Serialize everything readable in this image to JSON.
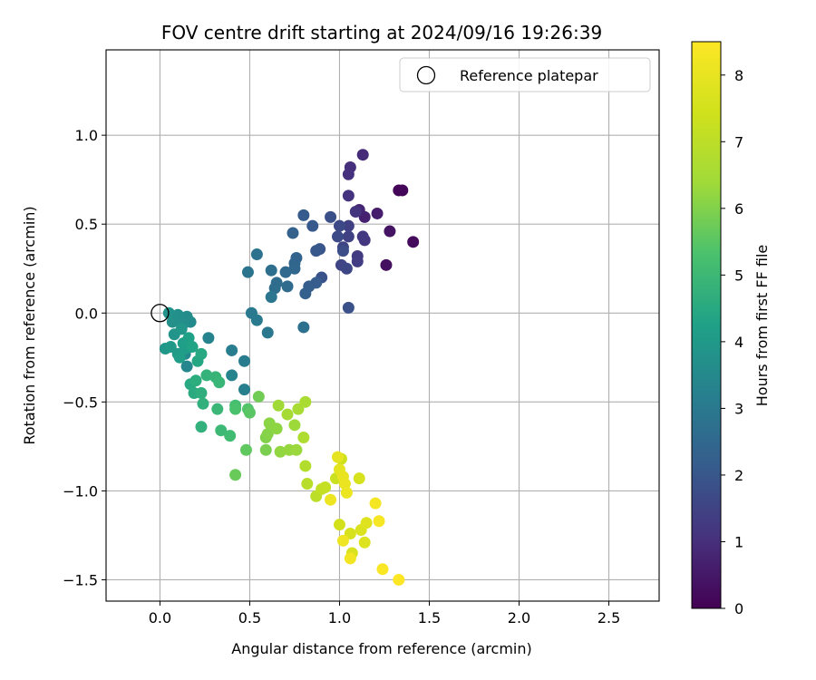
{
  "chart_data": {
    "type": "scatter",
    "title": "FOV centre drift starting at 2024/09/16 19:26:39",
    "xlabel": "Angular distance from reference (arcmin)",
    "ylabel": "Rotation from reference (arcmin)",
    "xlim": [
      -0.3,
      2.78
    ],
    "ylim": [
      -1.62,
      1.48
    ],
    "xticks": [
      0.0,
      0.5,
      1.0,
      1.5,
      2.0,
      2.5
    ],
    "xtick_labels": [
      "0.0",
      "0.5",
      "1.0",
      "1.5",
      "2.0",
      "2.5"
    ],
    "yticks": [
      1.0,
      0.5,
      0.0,
      -0.5,
      -1.0,
      -1.5
    ],
    "ytick_labels": [
      "1.0",
      "0.5",
      "0.0",
      "−0.5",
      "−1.0",
      "−1.5"
    ],
    "grid": true,
    "legend": {
      "position": "top-right",
      "label": "Reference platepar"
    },
    "reference_point": {
      "x": 0.0,
      "y": 0.0
    },
    "colorbar": {
      "label": "Hours from first FF file",
      "colormap": "viridis",
      "range": [
        0,
        8.5
      ],
      "ticks": [
        0,
        1,
        2,
        3,
        4,
        5,
        6,
        7,
        8
      ],
      "tick_labels": [
        "0",
        "1",
        "2",
        "3",
        "4",
        "5",
        "6",
        "7",
        "8"
      ]
    },
    "points": [
      {
        "x": 1.33,
        "y": 0.69,
        "h": 0.05
      },
      {
        "x": 1.35,
        "y": 0.69,
        "h": 0.1
      },
      {
        "x": 1.41,
        "y": 0.4,
        "h": 0.2
      },
      {
        "x": 1.26,
        "y": 0.27,
        "h": 0.3
      },
      {
        "x": 1.28,
        "y": 0.46,
        "h": 0.4
      },
      {
        "x": 1.21,
        "y": 0.56,
        "h": 0.6
      },
      {
        "x": 1.14,
        "y": 0.54,
        "h": 0.7
      },
      {
        "x": 1.11,
        "y": 0.58,
        "h": 0.8
      },
      {
        "x": 1.13,
        "y": 0.89,
        "h": 0.9
      },
      {
        "x": 1.06,
        "y": 0.82,
        "h": 1.0
      },
      {
        "x": 1.05,
        "y": 0.78,
        "h": 1.05
      },
      {
        "x": 1.05,
        "y": 0.66,
        "h": 1.1
      },
      {
        "x": 1.09,
        "y": 0.57,
        "h": 1.15
      },
      {
        "x": 1.14,
        "y": 0.41,
        "h": 1.2
      },
      {
        "x": 1.13,
        "y": 0.43,
        "h": 1.25
      },
      {
        "x": 1.1,
        "y": 0.32,
        "h": 1.3
      },
      {
        "x": 1.1,
        "y": 0.29,
        "h": 1.35
      },
      {
        "x": 1.05,
        "y": 0.49,
        "h": 1.4
      },
      {
        "x": 1.05,
        "y": 0.43,
        "h": 1.45
      },
      {
        "x": 1.02,
        "y": 0.37,
        "h": 1.5
      },
      {
        "x": 1.01,
        "y": 0.27,
        "h": 1.55
      },
      {
        "x": 1.04,
        "y": 0.25,
        "h": 1.6
      },
      {
        "x": 1.0,
        "y": 0.49,
        "h": 1.65
      },
      {
        "x": 0.99,
        "y": 0.43,
        "h": 1.7
      },
      {
        "x": 1.02,
        "y": 0.35,
        "h": 1.75
      },
      {
        "x": 0.95,
        "y": 0.54,
        "h": 1.8
      },
      {
        "x": 1.05,
        "y": 0.03,
        "h": 1.85
      },
      {
        "x": 0.9,
        "y": 0.2,
        "h": 1.9
      },
      {
        "x": 0.89,
        "y": 0.36,
        "h": 1.95
      },
      {
        "x": 0.87,
        "y": 0.35,
        "h": 2.0
      },
      {
        "x": 0.85,
        "y": 0.49,
        "h": 2.05
      },
      {
        "x": 0.8,
        "y": 0.55,
        "h": 2.1
      },
      {
        "x": 0.87,
        "y": 0.17,
        "h": 2.15
      },
      {
        "x": 0.83,
        "y": 0.15,
        "h": 2.2
      },
      {
        "x": 0.81,
        "y": 0.11,
        "h": 2.25
      },
      {
        "x": 0.74,
        "y": 0.45,
        "h": 2.3
      },
      {
        "x": 0.76,
        "y": 0.31,
        "h": 2.35
      },
      {
        "x": 0.75,
        "y": 0.28,
        "h": 2.4
      },
      {
        "x": 0.75,
        "y": 0.25,
        "h": 2.45
      },
      {
        "x": 0.7,
        "y": 0.23,
        "h": 2.5
      },
      {
        "x": 0.71,
        "y": 0.15,
        "h": 2.55
      },
      {
        "x": 0.65,
        "y": 0.17,
        "h": 2.6
      },
      {
        "x": 0.64,
        "y": 0.14,
        "h": 2.65
      },
      {
        "x": 0.62,
        "y": 0.24,
        "h": 2.7
      },
      {
        "x": 0.8,
        "y": -0.08,
        "h": 2.75
      },
      {
        "x": 0.54,
        "y": 0.33,
        "h": 2.8
      },
      {
        "x": 0.49,
        "y": 0.23,
        "h": 2.85
      },
      {
        "x": 0.62,
        "y": 0.09,
        "h": 2.9
      },
      {
        "x": 0.6,
        "y": -0.11,
        "h": 2.95
      },
      {
        "x": 0.51,
        "y": 0.0,
        "h": 3.0
      },
      {
        "x": 0.54,
        "y": -0.04,
        "h": 3.05
      },
      {
        "x": 0.47,
        "y": -0.27,
        "h": 3.1
      },
      {
        "x": 0.4,
        "y": -0.21,
        "h": 3.15
      },
      {
        "x": 0.47,
        "y": -0.43,
        "h": 3.2
      },
      {
        "x": 0.27,
        "y": -0.14,
        "h": 3.3
      },
      {
        "x": 0.4,
        "y": -0.35,
        "h": 3.35
      },
      {
        "x": 0.15,
        "y": -0.3,
        "h": 3.4
      },
      {
        "x": 0.14,
        "y": -0.23,
        "h": 3.5
      },
      {
        "x": 0.17,
        "y": -0.05,
        "h": 3.55
      },
      {
        "x": 0.15,
        "y": -0.02,
        "h": 3.6
      },
      {
        "x": 0.13,
        "y": -0.06,
        "h": 3.65
      },
      {
        "x": 0.1,
        "y": -0.01,
        "h": 3.7
      },
      {
        "x": 0.07,
        "y": -0.05,
        "h": 3.75
      },
      {
        "x": 0.05,
        "y": 0.0,
        "h": 3.8
      },
      {
        "x": 0.08,
        "y": -0.12,
        "h": 3.85
      },
      {
        "x": 0.12,
        "y": -0.09,
        "h": 3.9
      },
      {
        "x": 0.03,
        "y": -0.2,
        "h": 3.95
      },
      {
        "x": 0.06,
        "y": -0.19,
        "h": 4.0
      },
      {
        "x": 0.1,
        "y": -0.23,
        "h": 4.05
      },
      {
        "x": 0.14,
        "y": -0.2,
        "h": 4.1
      },
      {
        "x": 0.11,
        "y": -0.25,
        "h": 4.15
      },
      {
        "x": 0.13,
        "y": -0.17,
        "h": 4.2
      },
      {
        "x": 0.16,
        "y": -0.14,
        "h": 4.25
      },
      {
        "x": 0.18,
        "y": -0.19,
        "h": 4.3
      },
      {
        "x": 0.21,
        "y": -0.27,
        "h": 4.4
      },
      {
        "x": 0.23,
        "y": -0.23,
        "h": 4.45
      },
      {
        "x": 0.17,
        "y": -0.4,
        "h": 4.5
      },
      {
        "x": 0.19,
        "y": -0.45,
        "h": 4.55
      },
      {
        "x": 0.2,
        "y": -0.38,
        "h": 4.6
      },
      {
        "x": 0.23,
        "y": -0.45,
        "h": 4.65
      },
      {
        "x": 0.24,
        "y": -0.51,
        "h": 4.7
      },
      {
        "x": 0.23,
        "y": -0.64,
        "h": 4.75
      },
      {
        "x": 0.26,
        "y": -0.35,
        "h": 4.8
      },
      {
        "x": 0.31,
        "y": -0.36,
        "h": 4.85
      },
      {
        "x": 0.33,
        "y": -0.39,
        "h": 4.9
      },
      {
        "x": 0.32,
        "y": -0.54,
        "h": 4.95
      },
      {
        "x": 0.34,
        "y": -0.66,
        "h": 5.0
      },
      {
        "x": 0.39,
        "y": -0.69,
        "h": 5.1
      },
      {
        "x": 0.42,
        "y": -0.52,
        "h": 5.2
      },
      {
        "x": 0.42,
        "y": -0.54,
        "h": 5.3
      },
      {
        "x": 0.49,
        "y": -0.54,
        "h": 5.4
      },
      {
        "x": 0.5,
        "y": -0.56,
        "h": 5.5
      },
      {
        "x": 0.48,
        "y": -0.77,
        "h": 5.6
      },
      {
        "x": 0.42,
        "y": -0.91,
        "h": 5.7
      },
      {
        "x": 0.55,
        "y": -0.47,
        "h": 5.8
      },
      {
        "x": 0.59,
        "y": -0.77,
        "h": 5.9
      },
      {
        "x": 0.59,
        "y": -0.7,
        "h": 6.0
      },
      {
        "x": 0.6,
        "y": -0.68,
        "h": 6.05
      },
      {
        "x": 0.61,
        "y": -0.62,
        "h": 6.1
      },
      {
        "x": 0.65,
        "y": -0.65,
        "h": 6.15
      },
      {
        "x": 0.67,
        "y": -0.78,
        "h": 6.2
      },
      {
        "x": 0.72,
        "y": -0.77,
        "h": 6.25
      },
      {
        "x": 0.76,
        "y": -0.77,
        "h": 6.3
      },
      {
        "x": 0.75,
        "y": -0.63,
        "h": 6.35
      },
      {
        "x": 0.66,
        "y": -0.52,
        "h": 6.4
      },
      {
        "x": 0.71,
        "y": -0.57,
        "h": 6.5
      },
      {
        "x": 0.77,
        "y": -0.54,
        "h": 6.55
      },
      {
        "x": 0.81,
        "y": -0.5,
        "h": 6.6
      },
      {
        "x": 0.8,
        "y": -0.7,
        "h": 6.7
      },
      {
        "x": 0.81,
        "y": -0.86,
        "h": 6.8
      },
      {
        "x": 0.82,
        "y": -0.96,
        "h": 6.9
      },
      {
        "x": 0.87,
        "y": -1.03,
        "h": 7.0
      },
      {
        "x": 0.9,
        "y": -0.99,
        "h": 7.1
      },
      {
        "x": 0.92,
        "y": -0.98,
        "h": 7.2
      },
      {
        "x": 0.98,
        "y": -0.93,
        "h": 7.3
      },
      {
        "x": 1.01,
        "y": -0.82,
        "h": 7.4
      },
      {
        "x": 1.0,
        "y": -1.19,
        "h": 7.5
      },
      {
        "x": 1.11,
        "y": -0.93,
        "h": 7.55
      },
      {
        "x": 1.06,
        "y": -1.24,
        "h": 7.6
      },
      {
        "x": 1.07,
        "y": -1.35,
        "h": 7.65
      },
      {
        "x": 1.12,
        "y": -1.22,
        "h": 7.7
      },
      {
        "x": 1.14,
        "y": -1.29,
        "h": 7.75
      },
      {
        "x": 1.15,
        "y": -1.18,
        "h": 7.8
      },
      {
        "x": 1.0,
        "y": -0.88,
        "h": 7.9
      },
      {
        "x": 0.99,
        "y": -0.81,
        "h": 7.95
      },
      {
        "x": 1.02,
        "y": -0.92,
        "h": 8.0
      },
      {
        "x": 1.03,
        "y": -0.96,
        "h": 8.05
      },
      {
        "x": 1.04,
        "y": -1.01,
        "h": 8.1
      },
      {
        "x": 0.95,
        "y": -1.05,
        "h": 8.15
      },
      {
        "x": 1.02,
        "y": -1.28,
        "h": 8.2
      },
      {
        "x": 1.06,
        "y": -1.38,
        "h": 8.25
      },
      {
        "x": 1.2,
        "y": -1.07,
        "h": 8.3
      },
      {
        "x": 1.22,
        "y": -1.17,
        "h": 8.35
      },
      {
        "x": 1.24,
        "y": -1.44,
        "h": 8.4
      },
      {
        "x": 1.33,
        "y": -1.5,
        "h": 8.5
      }
    ]
  }
}
